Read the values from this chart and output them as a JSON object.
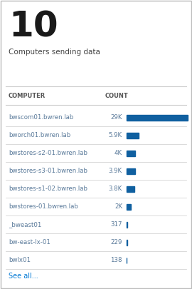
{
  "big_number": "10",
  "big_number_color": "#1a1a1a",
  "subtitle": "Computers sending data",
  "subtitle_color": "#444444",
  "col1_header": "COMPUTER",
  "col2_header": "COUNT",
  "header_color": "#555555",
  "rows": [
    {
      "name": "bwscom01.bwren.lab",
      "count": "29K",
      "value": 29000
    },
    {
      "name": "bworch01.bwren.lab",
      "count": "5.9K",
      "value": 5900
    },
    {
      "name": "bwstores-s2-01.bwren.lab",
      "count": "4K",
      "value": 4000
    },
    {
      "name": "bwstores-s3-01.bwren.lab",
      "count": "3.9K",
      "value": 3900
    },
    {
      "name": "bwstores-s1-02.bwren.lab",
      "count": "3.8K",
      "value": 3800
    },
    {
      "name": "bwstores-01.bwren.lab",
      "count": "2K",
      "value": 2000
    },
    {
      "name": "_bweast01",
      "count": "317",
      "value": 317
    },
    {
      "name": "bw-east-lx-01",
      "count": "229",
      "value": 229
    },
    {
      "name": "bwlx01",
      "count": "138",
      "value": 138
    }
  ],
  "bar_color": "#1060a0",
  "bar_max": 29000,
  "see_all_text": "See all...",
  "see_all_color": "#0078d4",
  "row_text_color": "#5a7a9a",
  "count_color": "#5a7a9a",
  "divider_color": "#cccccc",
  "background_color": "#ffffff",
  "border_color": "#bbbbbb",
  "fig_width": 2.7,
  "fig_height": 4.05,
  "dpi": 100
}
